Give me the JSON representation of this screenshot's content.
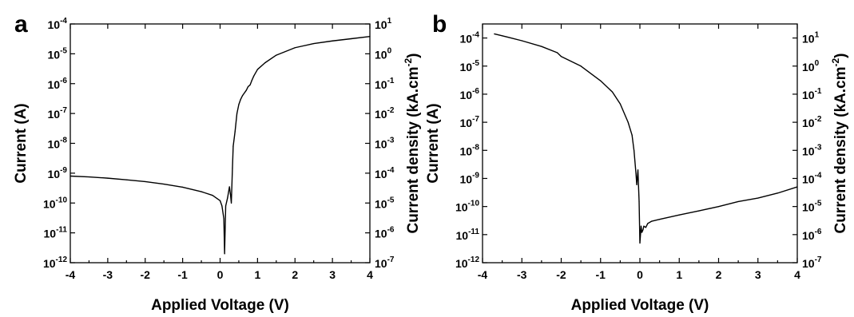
{
  "chart_data": [
    {
      "panel_label": "a",
      "type": "line",
      "xlabel": "Applied Voltage (V)",
      "ylabel": "Current (A)",
      "ylabel_right": {
        "text": "Current density (kA.cm",
        "exponent": "-2",
        "suffix": ")"
      },
      "xlim": [
        -4,
        4
      ],
      "ylim": [
        -12,
        -4
      ],
      "y_scale": "log",
      "y_right_range": [
        -7,
        1
      ],
      "x_ticks": [
        "-4",
        "-3",
        "-2",
        "-1",
        "0",
        "1",
        "2",
        "3",
        "4"
      ],
      "y_ticks": [
        {
          "base": "10",
          "exp": "-12"
        },
        {
          "base": "10",
          "exp": "-11"
        },
        {
          "base": "10",
          "exp": "-10"
        },
        {
          "base": "10",
          "exp": "-9"
        },
        {
          "base": "10",
          "exp": "-8"
        },
        {
          "base": "10",
          "exp": "-7"
        },
        {
          "base": "10",
          "exp": "-6"
        },
        {
          "base": "10",
          "exp": "-5"
        },
        {
          "base": "10",
          "exp": "-4"
        }
      ],
      "y_right_ticks": [
        {
          "base": "10",
          "exp": "-7"
        },
        {
          "base": "10",
          "exp": "-6"
        },
        {
          "base": "10",
          "exp": "-5"
        },
        {
          "base": "10",
          "exp": "-4"
        },
        {
          "base": "10",
          "exp": "-3"
        },
        {
          "base": "10",
          "exp": "-2"
        },
        {
          "base": "10",
          "exp": "-1"
        },
        {
          "base": "10",
          "exp": "0"
        },
        {
          "base": "10",
          "exp": "1"
        }
      ],
      "grid": false,
      "series": [
        {
          "x": [
            -4.0,
            -3.5,
            -3.0,
            -2.5,
            -2.0,
            -1.5,
            -1.0,
            -0.5,
            -0.2,
            0.0,
            0.05,
            0.1,
            0.12,
            0.15,
            0.2,
            0.25,
            0.28,
            0.3,
            0.33,
            0.35,
            0.4,
            0.45,
            0.5,
            0.55,
            0.6,
            0.7,
            0.75,
            0.8,
            0.85,
            0.9,
            1.0,
            1.2,
            1.5,
            2.0,
            2.5,
            3.0,
            3.5,
            4.0
          ],
          "y": [
            8e-10,
            7.5e-10,
            6.8e-10,
            6e-10,
            5.2e-10,
            4.3e-10,
            3.4e-10,
            2.4e-10,
            1.8e-10,
            1.2e-10,
            8e-11,
            3e-11,
            2e-12,
            8e-11,
            1.5e-10,
            3.5e-10,
            1.8e-10,
            1e-10,
            1.5e-09,
            8e-09,
            2.5e-08,
            1e-07,
            2e-07,
            3e-07,
            4e-07,
            6e-07,
            8e-07,
            9e-07,
            1.3e-06,
            1.8e-06,
            3e-06,
            5e-06,
            9e-06,
            1.6e-05,
            2.2e-05,
            2.7e-05,
            3.2e-05,
            3.8e-05
          ]
        }
      ]
    },
    {
      "panel_label": "b",
      "type": "line",
      "xlabel": "Applied Voltage (V)",
      "ylabel": "Current (A)",
      "ylabel_right": {
        "text": "Current density (kA.cm",
        "exponent": "-2",
        "suffix": ")"
      },
      "xlim": [
        -4,
        4
      ],
      "ylim": [
        -12,
        -3.5
      ],
      "y_scale": "log",
      "y_right_range": [
        -7,
        1.5
      ],
      "x_ticks": [
        "-4",
        "-3",
        "-2",
        "-1",
        "0",
        "1",
        "2",
        "3",
        "4"
      ],
      "y_ticks": [
        {
          "base": "10",
          "exp": "-12"
        },
        {
          "base": "10",
          "exp": "-11"
        },
        {
          "base": "10",
          "exp": "-10"
        },
        {
          "base": "10",
          "exp": "-9"
        },
        {
          "base": "10",
          "exp": "-8"
        },
        {
          "base": "10",
          "exp": "-7"
        },
        {
          "base": "10",
          "exp": "-6"
        },
        {
          "base": "10",
          "exp": "-5"
        },
        {
          "base": "10",
          "exp": "-4"
        }
      ],
      "y_right_ticks": [
        {
          "base": "10",
          "exp": "-7"
        },
        {
          "base": "10",
          "exp": "-6"
        },
        {
          "base": "10",
          "exp": "-5"
        },
        {
          "base": "10",
          "exp": "-4"
        },
        {
          "base": "10",
          "exp": "-3"
        },
        {
          "base": "10",
          "exp": "-2"
        },
        {
          "base": "10",
          "exp": "-1"
        },
        {
          "base": "10",
          "exp": "0"
        },
        {
          "base": "10",
          "exp": "1"
        }
      ],
      "grid": false,
      "series": [
        {
          "x": [
            -3.7,
            -3.5,
            -3.0,
            -2.5,
            -2.1,
            -2.0,
            -1.5,
            -1.0,
            -0.7,
            -0.5,
            -0.3,
            -0.2,
            -0.15,
            -0.1,
            -0.08,
            -0.05,
            -0.02,
            0.0,
            0.03,
            0.05,
            0.08,
            0.1,
            0.15,
            0.2,
            0.3,
            0.5,
            1.0,
            1.5,
            2.0,
            2.5,
            3.0,
            3.5,
            4.0
          ],
          "y": [
            0.00014,
            0.00012,
            8e-05,
            5e-05,
            3e-05,
            2.2e-05,
            1e-05,
            3e-06,
            1.2e-06,
            4.5e-07,
            1e-07,
            3.5e-08,
            1e-08,
            1.5e-09,
            6e-10,
            2e-09,
            1.5e-10,
            5e-12,
            2e-11,
            1.2e-11,
            1.5e-11,
            2e-11,
            1.8e-11,
            2.5e-11,
            3e-11,
            3.5e-11,
            5e-11,
            7e-11,
            1e-10,
            1.5e-10,
            2e-10,
            3e-10,
            5e-10
          ]
        }
      ]
    }
  ]
}
